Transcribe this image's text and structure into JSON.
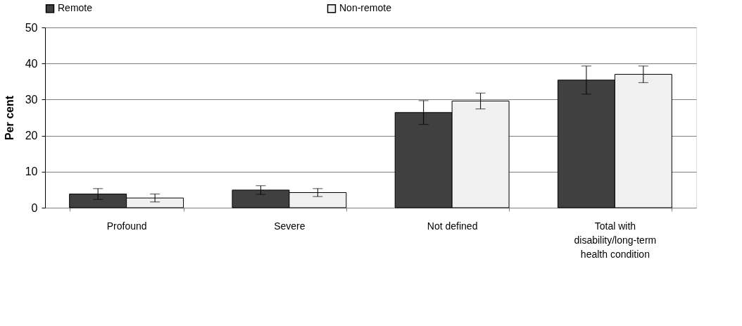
{
  "chart_data": {
    "type": "bar",
    "ylabel": "Per cent",
    "categories": [
      "Profound",
      "Severe",
      "Not defined",
      "Total with disability/long-term health condition"
    ],
    "series": [
      {
        "name": "Remote",
        "color": "#404040",
        "values": [
          3.8,
          4.9,
          26.4,
          35.4
        ],
        "errors": [
          1.5,
          1.2,
          3.3,
          3.9
        ]
      },
      {
        "name": "Non-remote",
        "color": "#f0f0f0",
        "values": [
          2.7,
          4.2,
          29.6,
          37.0
        ],
        "errors": [
          1.1,
          1.1,
          2.2,
          2.3
        ]
      }
    ],
    "ylim": [
      0,
      50
    ],
    "yticks": [
      0,
      10,
      20,
      30,
      40,
      50
    ],
    "grid": "y",
    "legend": "top"
  }
}
